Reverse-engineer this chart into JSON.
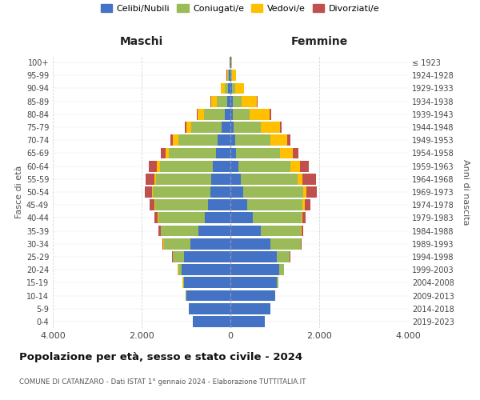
{
  "age_groups": [
    "0-4",
    "5-9",
    "10-14",
    "15-19",
    "20-24",
    "25-29",
    "30-34",
    "35-39",
    "40-44",
    "45-49",
    "50-54",
    "55-59",
    "60-64",
    "65-69",
    "70-74",
    "75-79",
    "80-84",
    "85-89",
    "90-94",
    "95-99",
    "100+"
  ],
  "birth_years": [
    "2019-2023",
    "2014-2018",
    "2009-2013",
    "2004-2008",
    "1999-2003",
    "1994-1998",
    "1989-1993",
    "1984-1988",
    "1979-1983",
    "1974-1978",
    "1969-1973",
    "1964-1968",
    "1959-1963",
    "1954-1958",
    "1949-1953",
    "1944-1948",
    "1939-1943",
    "1934-1938",
    "1929-1933",
    "1924-1928",
    "≤ 1923"
  ],
  "colors": {
    "celibe": "#4472C4",
    "coniugato": "#9BBB59",
    "vedovo": "#FFC000",
    "divorziato": "#C0504D"
  },
  "maschi": {
    "celibe": [
      850,
      930,
      1000,
      1050,
      1100,
      1050,
      900,
      720,
      580,
      500,
      450,
      430,
      390,
      330,
      280,
      200,
      130,
      80,
      50,
      30,
      10
    ],
    "coniugato": [
      0,
      5,
      10,
      20,
      80,
      250,
      600,
      850,
      1050,
      1200,
      1300,
      1250,
      1200,
      1050,
      900,
      680,
      470,
      230,
      80,
      20,
      5
    ],
    "vedovo": [
      0,
      0,
      0,
      5,
      5,
      5,
      5,
      5,
      10,
      15,
      20,
      30,
      60,
      80,
      120,
      110,
      130,
      130,
      80,
      30,
      5
    ],
    "divorziato": [
      0,
      0,
      0,
      5,
      5,
      10,
      30,
      50,
      70,
      100,
      160,
      200,
      180,
      100,
      60,
      40,
      30,
      10,
      5,
      5,
      0
    ]
  },
  "femmine": {
    "nubile": [
      780,
      900,
      1000,
      1050,
      1100,
      1050,
      900,
      680,
      500,
      380,
      290,
      230,
      180,
      130,
      100,
      80,
      60,
      50,
      30,
      20,
      10
    ],
    "coniugata": [
      0,
      5,
      10,
      30,
      100,
      280,
      680,
      900,
      1100,
      1250,
      1350,
      1280,
      1180,
      980,
      800,
      600,
      380,
      200,
      80,
      20,
      5
    ],
    "vedova": [
      0,
      0,
      0,
      5,
      5,
      5,
      10,
      20,
      30,
      50,
      80,
      120,
      200,
      300,
      380,
      430,
      450,
      350,
      200,
      80,
      20
    ],
    "divorziata": [
      0,
      0,
      0,
      5,
      5,
      10,
      20,
      40,
      70,
      120,
      230,
      300,
      200,
      120,
      80,
      50,
      30,
      10,
      5,
      5,
      0
    ]
  },
  "title": "Popolazione per età, sesso e stato civile - 2024",
  "subtitle": "COMUNE DI CATANZARO - Dati ISTAT 1° gennaio 2024 - Elaborazione TUTTITALIA.IT",
  "xlabel_left": "Maschi",
  "xlabel_right": "Femmine",
  "ylabel_left": "Fasce di età",
  "ylabel_right": "Anni di nascita",
  "xlim": 4000,
  "legend_labels": [
    "Celibi/Nubili",
    "Coniugati/e",
    "Vedovi/e",
    "Divorziati/e"
  ],
  "background_color": "#ffffff"
}
